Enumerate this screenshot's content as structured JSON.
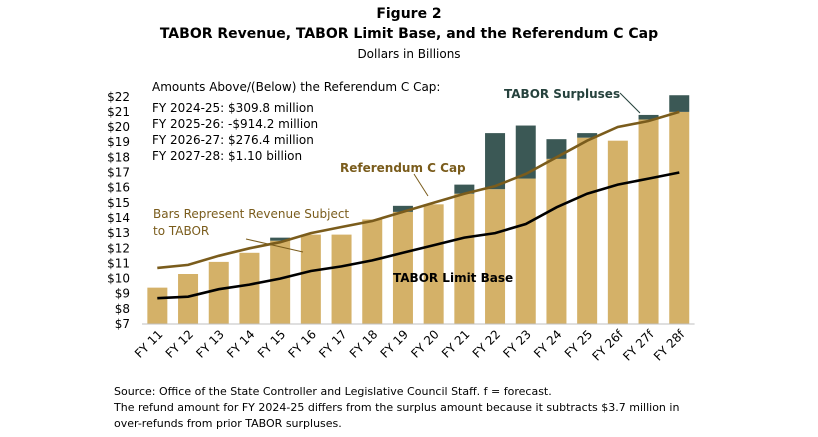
{
  "figure_label": "Figure 2",
  "title": "TABOR Revenue, TABOR Limit Base, and the Referendum C Cap",
  "subtitle": "Dollars in Billions",
  "notes": {
    "header": "Amounts Above/(Below) the Referendum C Cap:",
    "lines": [
      "FY 2024-25: $309.8 million",
      "FY 2025-26: -$914.2 million",
      "FY 2026-27: $276.4 million",
      "FY 2027-28: $1.10 billion"
    ]
  },
  "annotations": {
    "bars_label_1": "Bars Represent Revenue Subject",
    "bars_label_2": "to TABOR",
    "referendum_c": "Referendum C Cap",
    "surpluses": "TABOR Surpluses",
    "limit_base": "TABOR Limit Base"
  },
  "footer": [
    "Source: Office of the State Controller and Legislative Council Staff. f = forecast.",
    "The refund amount for FY 2024-25 differs from the surplus amount because it subtracts $3.7 million in",
    "over-refunds from prior TABOR surpluses."
  ],
  "colors": {
    "revenue_bar": "#d4b168",
    "surplus_bar": "#3b5855",
    "referendum_line": "#7a5c1c",
    "limit_line": "#000000",
    "surplus_label": "#26423d",
    "referendum_label": "#7a5c1c"
  },
  "chart_data": {
    "type": "bar",
    "categories": [
      "FY 11",
      "FY 12",
      "FY 13",
      "FY 14",
      "FY 15",
      "FY 16",
      "FY 17",
      "FY 18",
      "FY 19",
      "FY 20",
      "FY 21",
      "FY 22",
      "FY 23",
      "FY 24",
      "FY 25",
      "FY 26f",
      "FY 27f",
      "FY 28f"
    ],
    "ylim": [
      7,
      22
    ],
    "yticks": [
      7,
      8,
      9,
      10,
      11,
      12,
      13,
      14,
      15,
      16,
      17,
      18,
      19,
      20,
      21,
      22
    ],
    "ytick_labels": [
      "$7",
      "$8",
      "$9",
      "$10",
      "$11",
      "$12",
      "$13",
      "$14",
      "$15",
      "$16",
      "$17",
      "$18",
      "$19",
      "$20",
      "$21",
      "$22"
    ],
    "series": [
      {
        "name": "Bars Represent Revenue Subject to TABOR",
        "kind": "bar",
        "values": [
          9.4,
          10.3,
          11.1,
          11.7,
          12.5,
          12.9,
          12.9,
          13.9,
          14.4,
          14.9,
          15.6,
          15.9,
          16.6,
          17.9,
          19.3,
          19.1,
          20.5,
          21.0
        ]
      },
      {
        "name": "TABOR Surpluses",
        "kind": "bar_stack",
        "values": [
          0,
          0,
          0,
          0,
          0.2,
          0,
          0,
          0,
          0.4,
          0,
          0.6,
          3.7,
          3.5,
          1.3,
          0.3,
          0,
          0.3,
          1.1
        ]
      },
      {
        "name": "Referendum C Cap",
        "kind": "line",
        "values": [
          10.7,
          10.9,
          11.5,
          12.0,
          12.4,
          13.0,
          13.4,
          13.8,
          14.4,
          15.0,
          15.6,
          16.1,
          16.9,
          18.0,
          19.1,
          20.0,
          20.4,
          21.0
        ]
      },
      {
        "name": "TABOR Limit Base",
        "kind": "line",
        "values": [
          8.7,
          8.8,
          9.3,
          9.6,
          10.0,
          10.5,
          10.8,
          11.2,
          11.7,
          12.2,
          12.7,
          13.0,
          13.6,
          14.7,
          15.6,
          16.2,
          16.6,
          17.0
        ]
      }
    ],
    "grid": false
  }
}
